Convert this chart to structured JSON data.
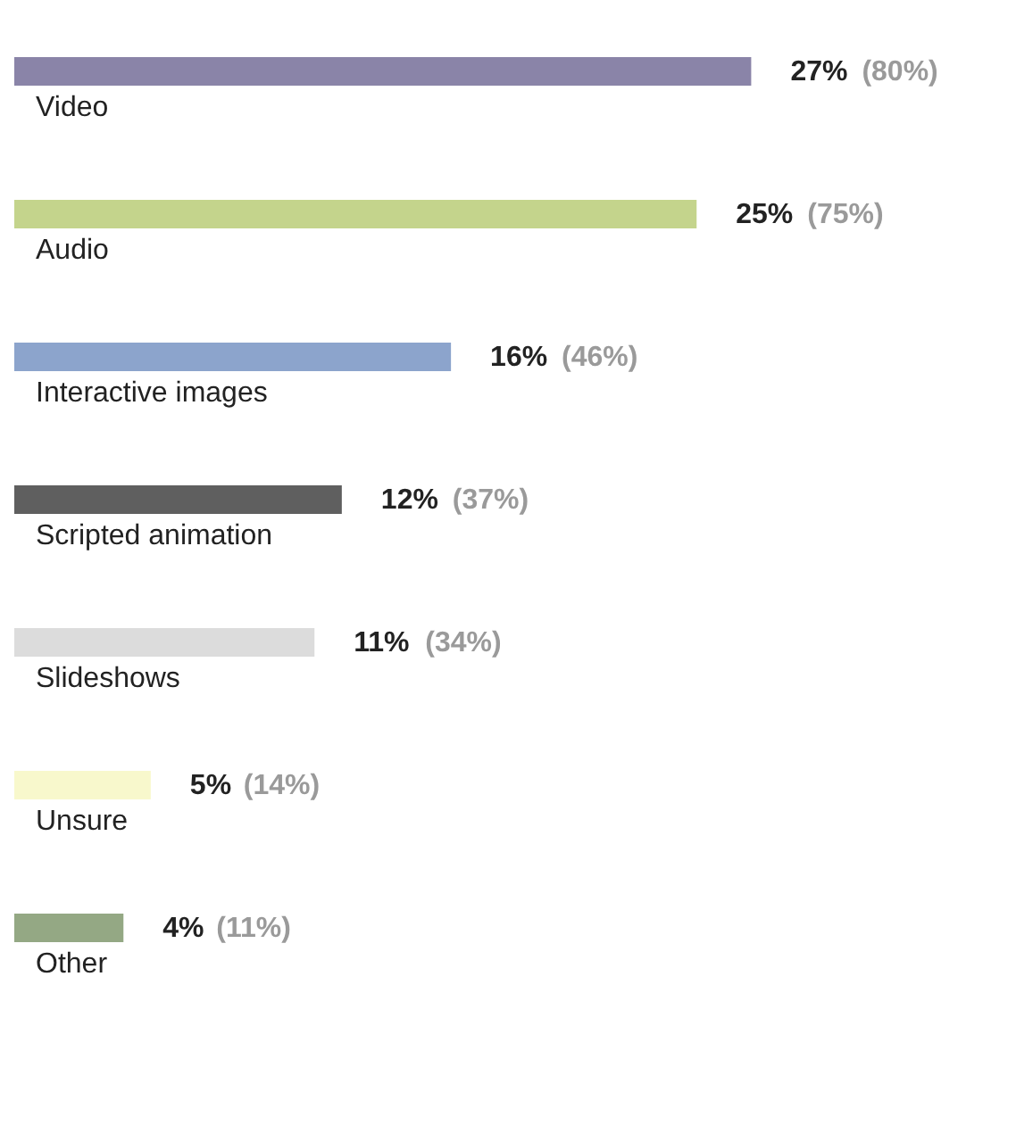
{
  "chart_data": {
    "type": "bar",
    "orientation": "horizontal",
    "categories": [
      "Video",
      "Audio",
      "Interactive images",
      "Scripted animation",
      "Slideshows",
      "Unsure",
      "Other"
    ],
    "values": [
      27,
      25,
      16,
      12,
      11,
      5,
      4
    ],
    "colors": [
      "#8a84a8",
      "#c4d48c",
      "#8ca4cc",
      "#5f5f5f",
      "#dcdcdc",
      "#f8f8cc",
      "#94a884"
    ],
    "value_labels": [
      "27% (80%)",
      "25% (75%)",
      "16% (46%)",
      "12% (37%)",
      "11% (34%)",
      "5% (14%)",
      "4% (11%)"
    ]
  }
}
